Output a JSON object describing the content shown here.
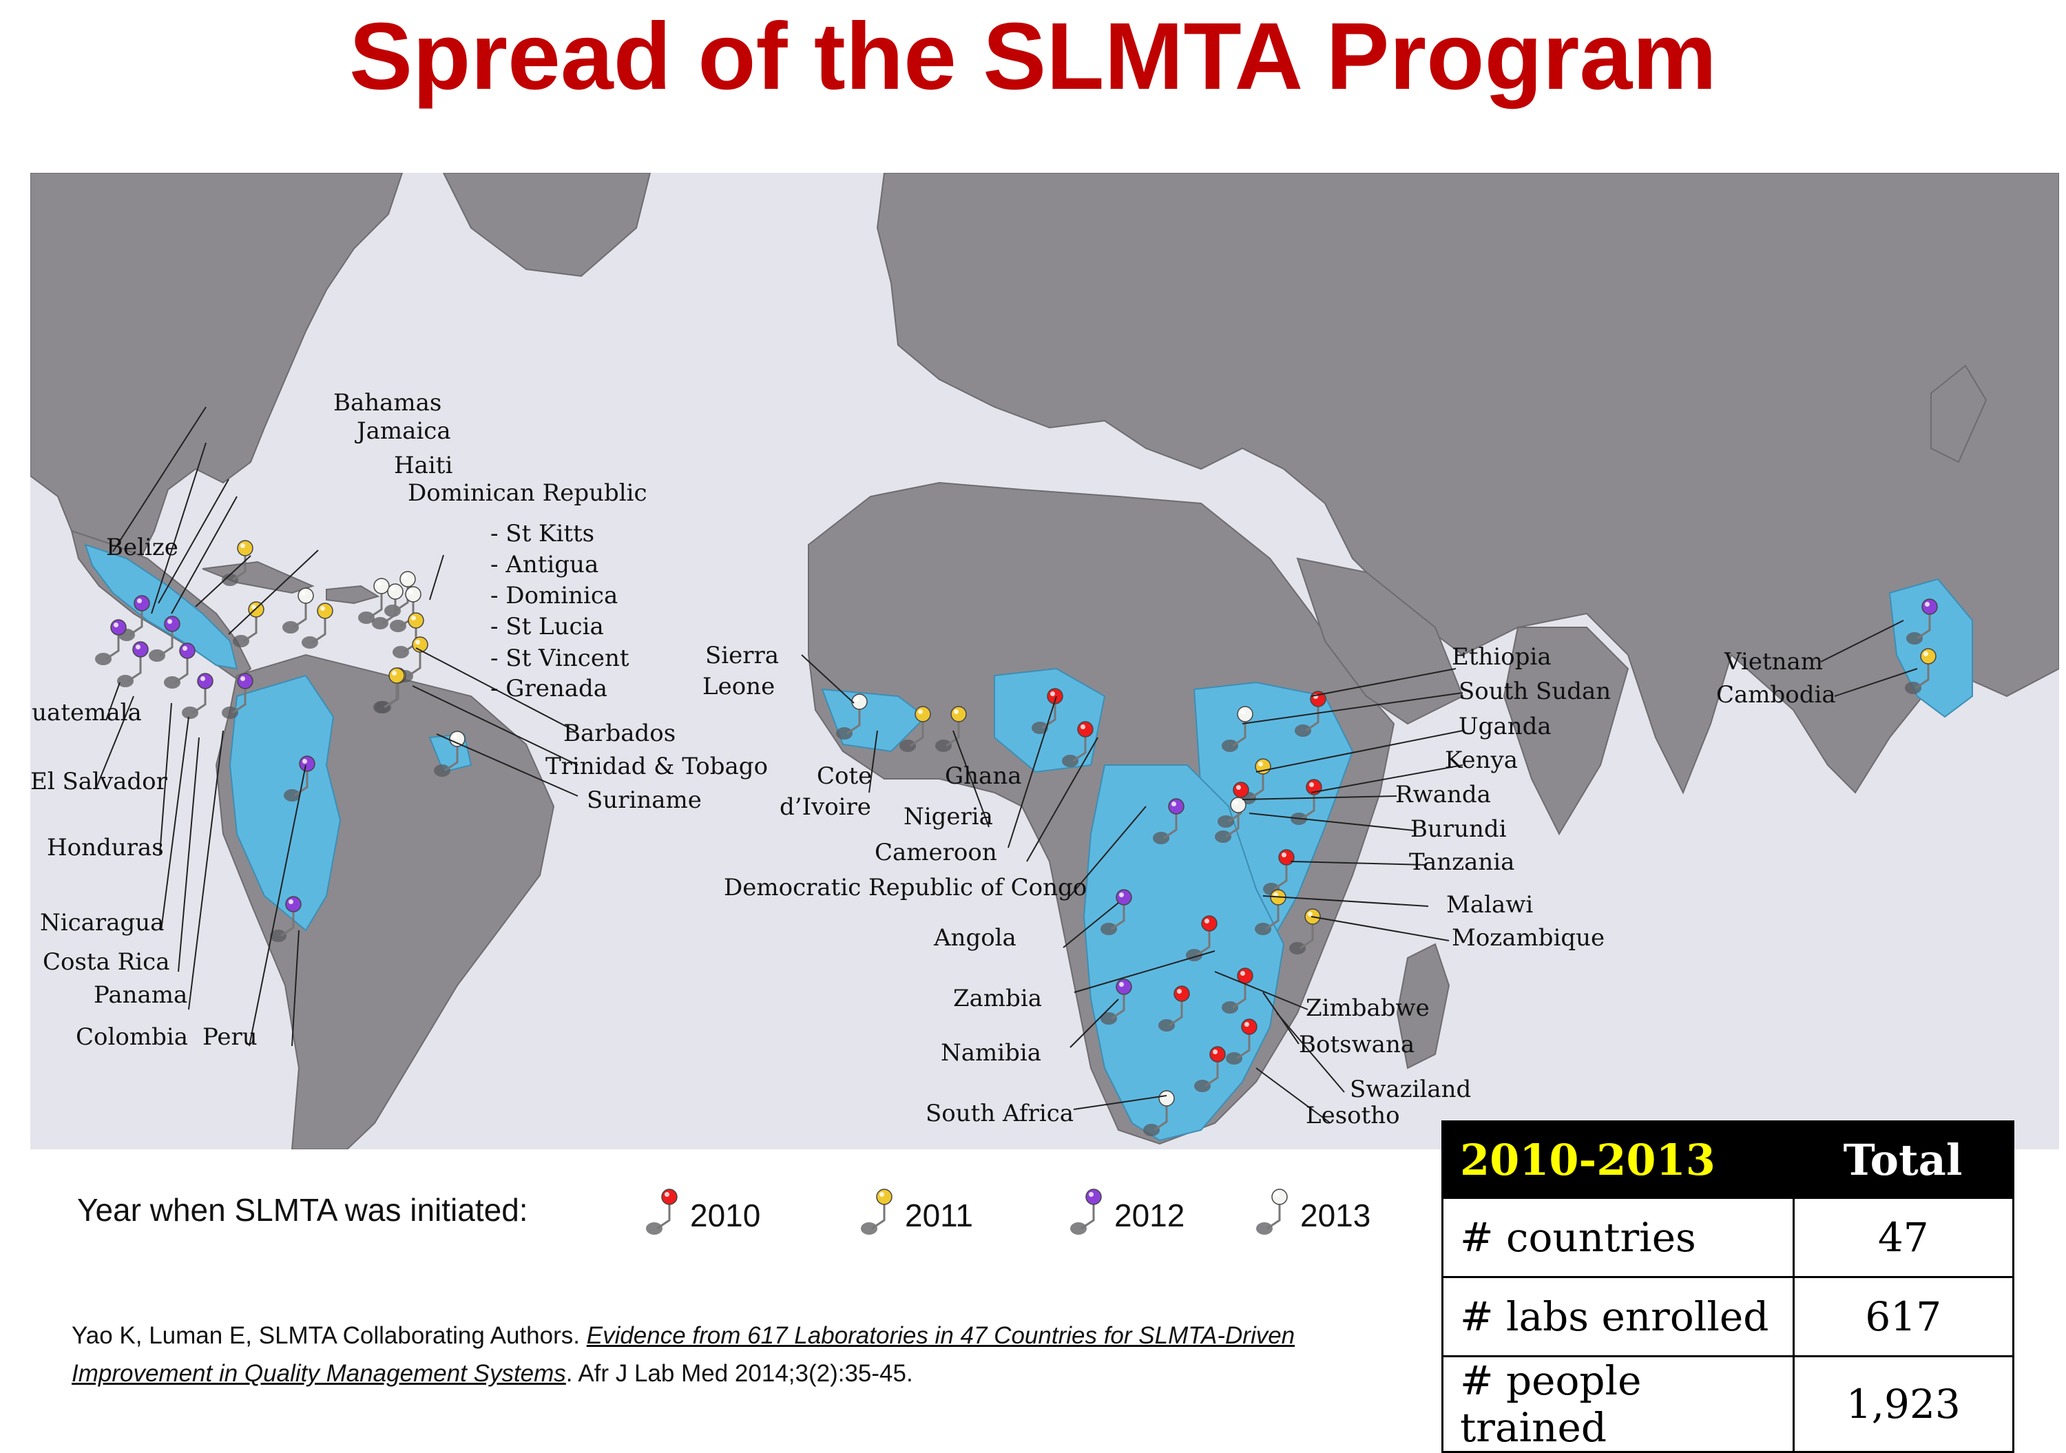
{
  "title": "Spread of the SLMTA Program",
  "colors": {
    "title": "#c00000",
    "ocean": "#e4e4ec",
    "land": "#8c8a8e",
    "slmta_country": "#5db8e0",
    "pin_2010": "#ee1c1c",
    "pin_2011": "#f0c830",
    "pin_2012": "#8c40d8",
    "pin_2013": "#f4f4f0"
  },
  "legend": {
    "label": "Year when SLMTA was initiated:",
    "items": [
      {
        "year": "2010",
        "color": "#ee1c1c"
      },
      {
        "year": "2011",
        "color": "#f0c830"
      },
      {
        "year": "2012",
        "color": "#8c40d8"
      },
      {
        "year": "2013",
        "color": "#f4f4f0"
      }
    ]
  },
  "map": {
    "pins": [
      {
        "country": "Bahamas",
        "year": "2011"
      },
      {
        "country": "Jamaica",
        "year": "2011"
      },
      {
        "country": "Haiti",
        "year": "2013"
      },
      {
        "country": "Dominican Republic",
        "year": "2011"
      },
      {
        "country": "St Kitts",
        "year": "2013"
      },
      {
        "country": "Antigua",
        "year": "2013"
      },
      {
        "country": "Dominica",
        "year": "2013"
      },
      {
        "country": "St Lucia",
        "year": "2013"
      },
      {
        "country": "St Vincent",
        "year": "2011"
      },
      {
        "country": "Grenada",
        "year": "2011"
      },
      {
        "country": "Barbados",
        "year": "2011"
      },
      {
        "country": "Trinidad & Tobago",
        "year": "2011"
      },
      {
        "country": "Suriname",
        "year": "2013"
      },
      {
        "country": "Belize",
        "year": "2012"
      },
      {
        "country": "Guatemala",
        "year": "2012"
      },
      {
        "country": "El Salvador",
        "year": "2012"
      },
      {
        "country": "Honduras",
        "year": "2012"
      },
      {
        "country": "Nicaragua",
        "year": "2012"
      },
      {
        "country": "Costa Rica",
        "year": "2012"
      },
      {
        "country": "Panama",
        "year": "2012"
      },
      {
        "country": "Colombia",
        "year": "2012"
      },
      {
        "country": "Peru",
        "year": "2012"
      },
      {
        "country": "Sierra Leone",
        "year": "2013"
      },
      {
        "country": "Cote d'Ivoire",
        "year": "2011"
      },
      {
        "country": "Ghana",
        "year": "2011"
      },
      {
        "country": "Nigeria",
        "year": "2010"
      },
      {
        "country": "Cameroon",
        "year": "2010"
      },
      {
        "country": "Democratic Republic of Congo",
        "year": "2012"
      },
      {
        "country": "Angola",
        "year": "2012"
      },
      {
        "country": "Zambia",
        "year": "2010"
      },
      {
        "country": "Namibia",
        "year": "2012"
      },
      {
        "country": "South Africa",
        "year": "2013"
      },
      {
        "country": "Ethiopia",
        "year": "2010"
      },
      {
        "country": "South Sudan",
        "year": "2013"
      },
      {
        "country": "Uganda",
        "year": "2011"
      },
      {
        "country": "Kenya",
        "year": "2010"
      },
      {
        "country": "Rwanda",
        "year": "2010"
      },
      {
        "country": "Burundi",
        "year": "2013"
      },
      {
        "country": "Tanzania",
        "year": "2010"
      },
      {
        "country": "Malawi",
        "year": "2011"
      },
      {
        "country": "Mozambique",
        "year": "2011"
      },
      {
        "country": "Zimbabwe",
        "year": "2010"
      },
      {
        "country": "Botswana",
        "year": "2010"
      },
      {
        "country": "Swaziland",
        "year": "2010"
      },
      {
        "country": "Lesotho",
        "year": "2010"
      },
      {
        "country": "Vietnam",
        "year": "2012"
      },
      {
        "country": "Cambodia",
        "year": "2011"
      }
    ],
    "labels": {
      "bahamas": "Bahamas",
      "jamaica": "Jamaica",
      "haiti": "Haiti",
      "dominican_republic": "Dominican Republic",
      "st_kitts": "- St Kitts",
      "antigua": "- Antigua",
      "dominica": "- Dominica",
      "st_lucia": "- St Lucia",
      "st_vincent": "- St Vincent",
      "grenada": "- Grenada",
      "barbados": "Barbados",
      "trinidad": "Trinidad & Tobago",
      "suriname": "Suriname",
      "belize": "Belize",
      "guatemala": "Guatemala",
      "el_salvador": "El Salvador",
      "honduras": "Honduras",
      "nicaragua": "Nicaragua",
      "costa_rica": "Costa Rica",
      "panama": "Panama",
      "colombia": "Colombia",
      "peru": "Peru",
      "sierra": "Sierra",
      "leone": "Leone",
      "cote": "Cote",
      "divoire": "d’Ivoire",
      "ghana": "Ghana",
      "nigeria": "Nigeria",
      "cameroon": "Cameroon",
      "drc": "Democratic Republic of Congo",
      "angola": "Angola",
      "zambia": "Zambia",
      "namibia": "Namibia",
      "south_africa": "South Africa",
      "ethiopia": "Ethiopia",
      "south_sudan": "South Sudan",
      "uganda": "Uganda",
      "kenya": "Kenya",
      "rwanda": "Rwanda",
      "burundi": "Burundi",
      "tanzania": "Tanzania",
      "malawi": "Malawi",
      "mozambique": "Mozambique",
      "zimbabwe": "Zimbabwe",
      "botswana": "Botswana",
      "swaziland": "Swaziland",
      "lesotho": "Lesotho",
      "vietnam": "Vietnam",
      "cambodia": "Cambodia"
    }
  },
  "stats_table": {
    "period": "2010-2013",
    "total_header": "Total",
    "rows": [
      {
        "label": "# countries",
        "value": "47"
      },
      {
        "label": "# labs enrolled",
        "value": "617"
      },
      {
        "label": "# people trained",
        "value": "1,923"
      }
    ]
  },
  "citation": {
    "authors": "Yao K, Luman E, SLMTA Collaborating Authors. ",
    "title": "Evidence from 617 Laboratories in 47 Countries for SLMTA-Driven Improvement in Quality Management Systems",
    "journal": ". Afr J Lab Med 2014;3(2):35-45."
  }
}
